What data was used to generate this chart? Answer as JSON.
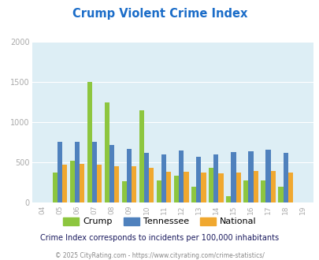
{
  "title": "Crump Violent Crime Index",
  "years": [
    "04",
    "05",
    "06",
    "07",
    "08",
    "09",
    "10",
    "11",
    "12",
    "13",
    "14",
    "15",
    "16",
    "17",
    "18",
    "19"
  ],
  "crump": [
    0,
    380,
    520,
    1500,
    1250,
    270,
    1150,
    275,
    335,
    200,
    430,
    80,
    275,
    275,
    195,
    0
  ],
  "tennessee": [
    0,
    755,
    760,
    760,
    720,
    665,
    620,
    605,
    645,
    575,
    605,
    625,
    635,
    655,
    615,
    0
  ],
  "national": [
    0,
    470,
    480,
    470,
    455,
    450,
    435,
    385,
    390,
    375,
    365,
    375,
    395,
    395,
    375,
    0
  ],
  "crump_color": "#8dc63f",
  "tennessee_color": "#4f81bd",
  "national_color": "#f0a830",
  "bg_color": "#ddeef5",
  "ylim": [
    0,
    2000
  ],
  "ylabel_ticks": [
    0,
    500,
    1000,
    1500,
    2000
  ],
  "subtitle": "Crime Index corresponds to incidents per 100,000 inhabitants",
  "footer": "© 2025 CityRating.com - https://www.cityrating.com/crime-statistics/",
  "title_color": "#1a6cc8",
  "subtitle_color": "#1a1a5e",
  "footer_color": "#888888",
  "tick_color": "#aaaaaa"
}
